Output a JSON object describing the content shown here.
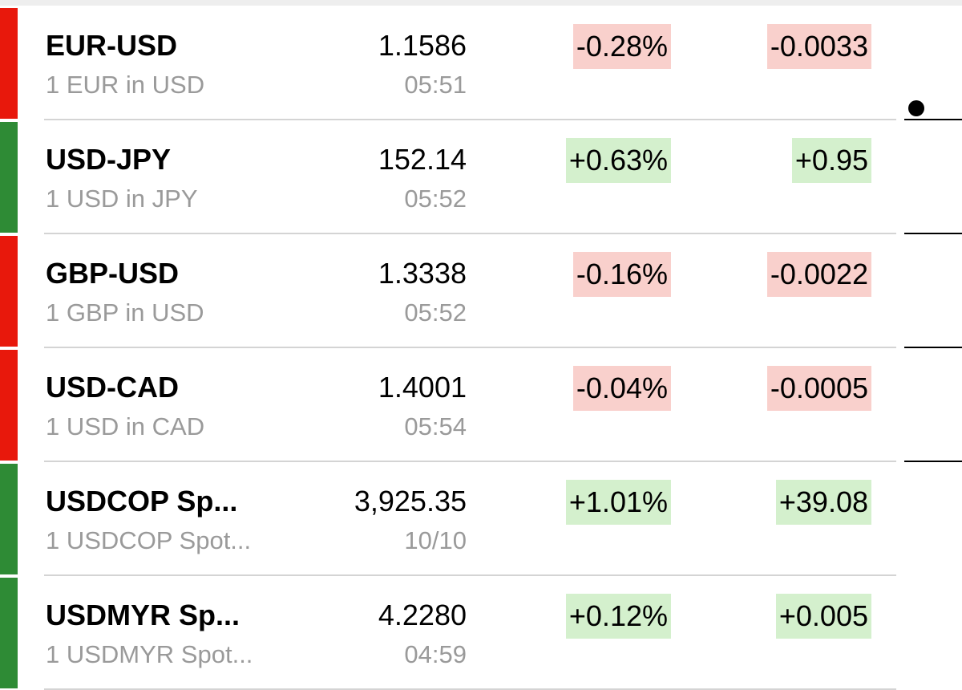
{
  "rows": [
    {
      "name": "EUR-USD",
      "subtitle": "1 EUR in USD",
      "price": "1.1586",
      "time": "05:51",
      "change_pct": "-0.28%",
      "change": "-0.0033"
    },
    {
      "name": "USD-JPY",
      "subtitle": "1 USD in JPY",
      "price": "152.14",
      "time": "05:52",
      "change_pct": "+0.63%",
      "change": "+0.95"
    },
    {
      "name": "GBP-USD",
      "subtitle": "1 GBP in USD",
      "price": "1.3338",
      "time": "05:52",
      "change_pct": "-0.16%",
      "change": "-0.0022"
    },
    {
      "name": "USD-CAD",
      "subtitle": "1 USD in CAD",
      "price": "1.4001",
      "time": "05:54",
      "change_pct": "-0.04%",
      "change": "-0.0005"
    },
    {
      "name": "USDCOP Sp...",
      "subtitle": "1 USDCOP Spot...",
      "price": "3,925.35",
      "time": "10/10",
      "change_pct": "+1.01%",
      "change": "+39.08"
    },
    {
      "name": "USDMYR Sp...",
      "subtitle": "1 USDMYR Spot...",
      "price": "4.2280",
      "time": "04:59",
      "change_pct": "+0.12%",
      "change": "+0.005"
    }
  ]
}
